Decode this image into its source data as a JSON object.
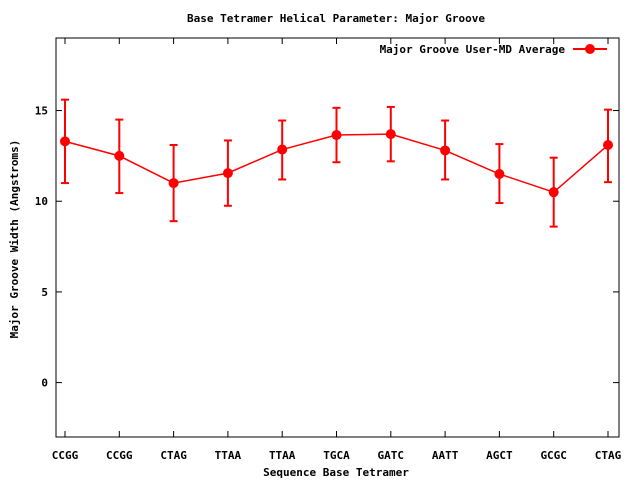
{
  "chart_data": {
    "type": "line",
    "title": "Base Tetramer Helical Parameter: Major Groove",
    "xlabel": "Sequence Base Tetramer",
    "ylabel": "Major Groove Width (Angstroms)",
    "categories": [
      "CCGG",
      "CCGG",
      "CTAG",
      "TTAA",
      "TTAA",
      "TGCA",
      "GATC",
      "AATT",
      "AGCT",
      "GCGC",
      "CTAG"
    ],
    "ylim": [
      -3,
      19
    ],
    "yticks": [
      0,
      5,
      10,
      15
    ],
    "legend_position": "top-right",
    "grid": false,
    "series": [
      {
        "name": "Major Groove User-MD Average",
        "color": "#ff0000",
        "values": [
          13.3,
          12.5,
          11.0,
          11.55,
          12.85,
          13.65,
          13.7,
          12.8,
          11.5,
          10.5,
          13.1
        ],
        "err_low": [
          11.0,
          10.45,
          8.9,
          9.75,
          11.2,
          12.15,
          12.2,
          11.2,
          9.9,
          8.6,
          11.05
        ],
        "err_high": [
          15.6,
          14.5,
          13.1,
          13.35,
          14.45,
          15.15,
          15.2,
          14.45,
          13.15,
          12.4,
          15.05
        ]
      }
    ]
  }
}
